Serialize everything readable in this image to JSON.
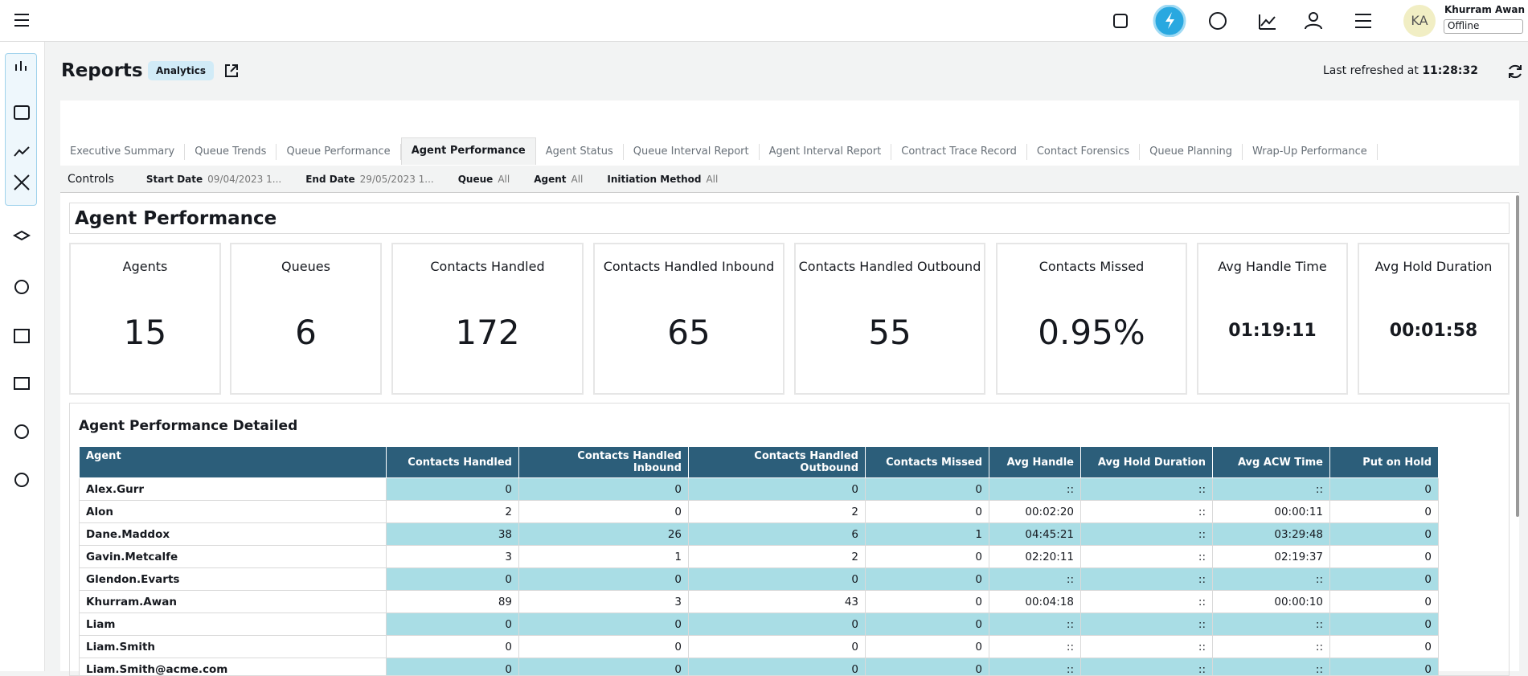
{
  "header": {
    "initials": "KA",
    "user_name": "Khurram Awan",
    "status": "Offline"
  },
  "page": {
    "title": "Reports",
    "badge": "Analytics",
    "refresh_label": "Last refreshed at",
    "refresh_time": "11:28:32"
  },
  "tabs": [
    "Executive Summary",
    "Queue Trends",
    "Queue Performance",
    "Agent Performance",
    "Agent Status",
    "Queue Interval Report",
    "Agent Interval Report",
    "Contract Trace Record",
    "Contact Forensics",
    "Queue Planning",
    "Wrap-Up Performance"
  ],
  "controls": {
    "label": "Controls",
    "filters": [
      {
        "label": "Start Date",
        "value": "09/04/2023 1..."
      },
      {
        "label": "End Date",
        "value": "29/05/2023 1..."
      },
      {
        "label": "Queue",
        "value": "All"
      },
      {
        "label": "Agent",
        "value": "All"
      },
      {
        "label": "Initiation Method",
        "value": "All"
      }
    ]
  },
  "section": {
    "title": "Agent Performance"
  },
  "kpis": [
    {
      "label": "Agents",
      "value": "15"
    },
    {
      "label": "Queues",
      "value": "6"
    },
    {
      "label": "Contacts Handled",
      "value": "172"
    },
    {
      "label": "Contacts Handled Inbound",
      "value": "65"
    },
    {
      "label": "Contacts Handled Outbound",
      "value": "55"
    },
    {
      "label": "Contacts Missed",
      "value": "0.95%"
    },
    {
      "label": "Avg Handle Time",
      "value": "01:19:11"
    },
    {
      "label": "Avg Hold Duration",
      "value": "00:01:58"
    }
  ],
  "table": {
    "title": "Agent Performance Detailed",
    "columns": [
      "Agent",
      "Contacts Handled",
      "Contacts Handled Inbound",
      "Contacts Handled Outbound",
      "Contacts Missed",
      "Avg Handle",
      "Avg Hold Duration",
      "Avg ACW Time",
      "Put on Hold"
    ],
    "rows": [
      [
        "Alex.Gurr",
        "0",
        "0",
        "0",
        "0",
        "::",
        "::",
        "::",
        "0"
      ],
      [
        "Alon",
        "2",
        "0",
        "2",
        "0",
        "00:02:20",
        "::",
        "00:00:11",
        "0"
      ],
      [
        "Dane.Maddox",
        "38",
        "26",
        "6",
        "1",
        "04:45:21",
        "::",
        "03:29:48",
        "0"
      ],
      [
        "Gavin.Metcalfe",
        "3",
        "1",
        "2",
        "0",
        "02:20:11",
        "::",
        "02:19:37",
        "0"
      ],
      [
        "Glendon.Evarts",
        "0",
        "0",
        "0",
        "0",
        "::",
        "::",
        "::",
        "0"
      ],
      [
        "Khurram.Awan",
        "89",
        "3",
        "43",
        "0",
        "00:04:18",
        "::",
        "00:00:10",
        "0"
      ],
      [
        "Liam",
        "0",
        "0",
        "0",
        "0",
        "::",
        "::",
        "::",
        "0"
      ],
      [
        "Liam.Smith",
        "0",
        "0",
        "0",
        "0",
        "::",
        "::",
        "::",
        "0"
      ],
      [
        "Liam.Smith@acme.com",
        "0",
        "0",
        "0",
        "0",
        "::",
        "::",
        "::",
        "0"
      ]
    ]
  }
}
